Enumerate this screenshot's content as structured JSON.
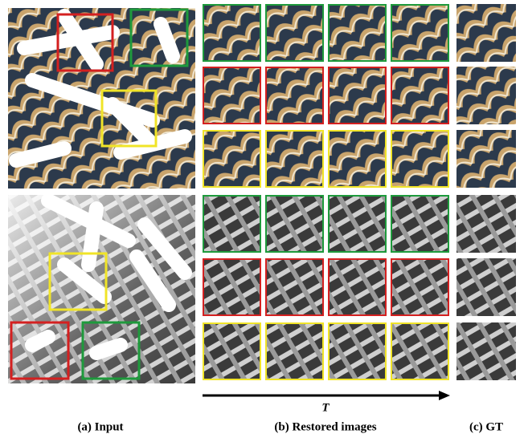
{
  "captions": [
    "(a) Input",
    "(b) Restored images",
    "(c) GT"
  ],
  "axis_label": "T"
}
